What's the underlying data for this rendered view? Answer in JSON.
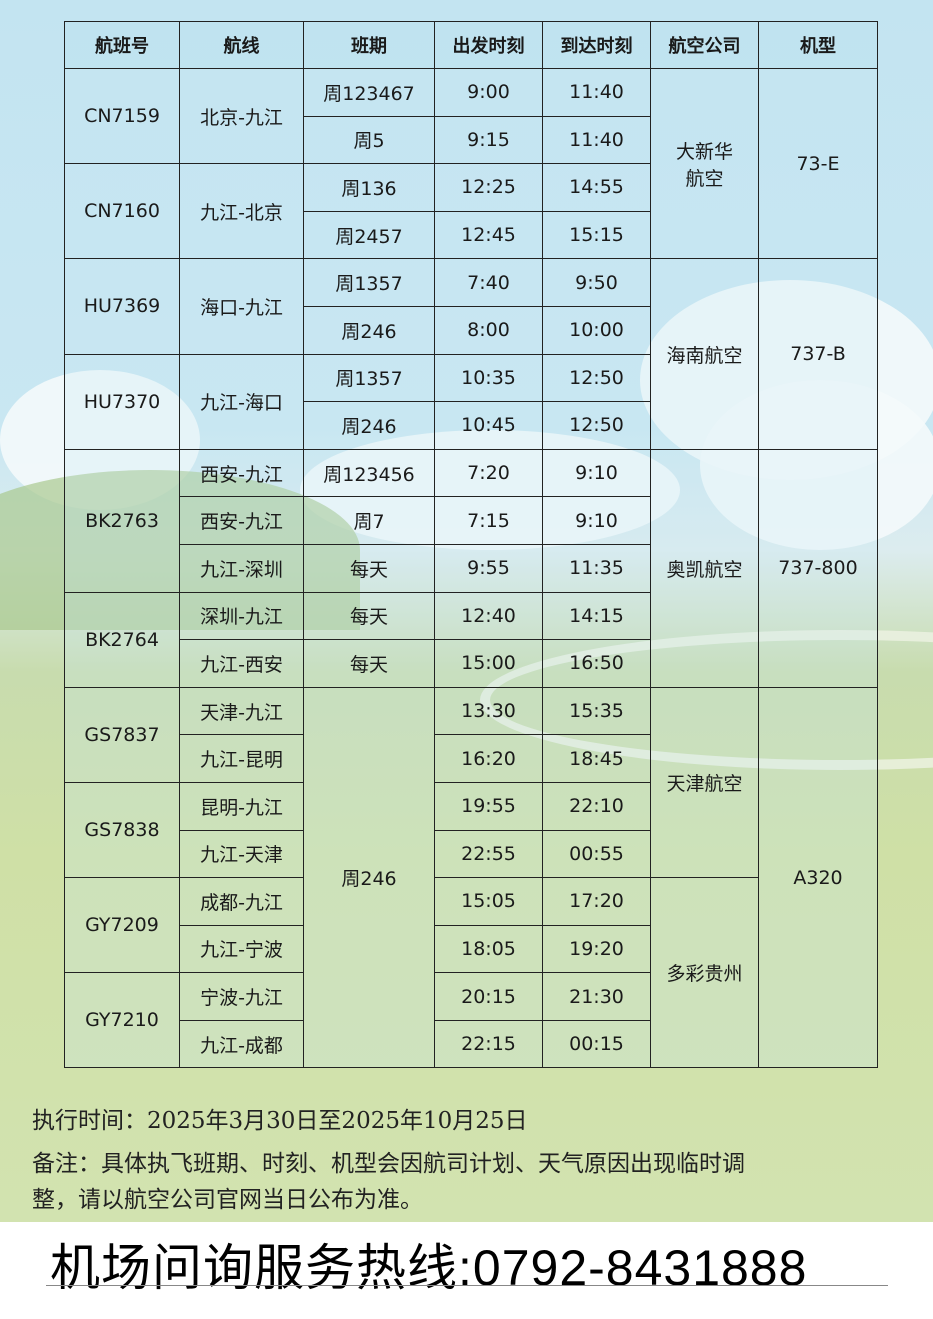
{
  "header": [
    "航班号",
    "航线",
    "班期",
    "出发时刻",
    "到达时刻",
    "航空公司",
    "机型"
  ],
  "rows": [
    [
      {
        "t": "CN7159",
        "r": 2
      },
      {
        "t": "北京-九江",
        "r": 2
      },
      {
        "t": "周123467"
      },
      {
        "t": "9:00"
      },
      {
        "t": "11:40"
      },
      {
        "t": "大新华\n航空",
        "r": 4
      },
      {
        "t": "73-E",
        "r": 4
      }
    ],
    [
      {
        "t": "周5"
      },
      {
        "t": "9:15"
      },
      {
        "t": "11:40"
      }
    ],
    [
      {
        "t": "CN7160",
        "r": 2
      },
      {
        "t": "九江-北京",
        "r": 2
      },
      {
        "t": "周136"
      },
      {
        "t": "12:25"
      },
      {
        "t": "14:55"
      }
    ],
    [
      {
        "t": "周2457"
      },
      {
        "t": "12:45"
      },
      {
        "t": "15:15"
      }
    ],
    [
      {
        "t": "HU7369",
        "r": 2
      },
      {
        "t": "海口-九江",
        "r": 2
      },
      {
        "t": "周1357"
      },
      {
        "t": "7:40"
      },
      {
        "t": "9:50"
      },
      {
        "t": "海南航空",
        "r": 4
      },
      {
        "t": "737-B",
        "r": 4
      }
    ],
    [
      {
        "t": "周246"
      },
      {
        "t": "8:00"
      },
      {
        "t": "10:00"
      }
    ],
    [
      {
        "t": "HU7370",
        "r": 2
      },
      {
        "t": "九江-海口",
        "r": 2
      },
      {
        "t": "周1357"
      },
      {
        "t": "10:35"
      },
      {
        "t": "12:50"
      }
    ],
    [
      {
        "t": "周246"
      },
      {
        "t": "10:45"
      },
      {
        "t": "12:50"
      }
    ],
    [
      {
        "t": "BK2763",
        "r": 3
      },
      {
        "t": "西安-九江"
      },
      {
        "t": "周123456"
      },
      {
        "t": "7:20"
      },
      {
        "t": "9:10"
      },
      {
        "t": "奥凯航空",
        "r": 5
      },
      {
        "t": "737-800",
        "r": 5
      }
    ],
    [
      {
        "t": "西安-九江"
      },
      {
        "t": "周7"
      },
      {
        "t": "7:15"
      },
      {
        "t": "9:10"
      }
    ],
    [
      {
        "t": "九江-深圳"
      },
      {
        "t": "每天"
      },
      {
        "t": "9:55"
      },
      {
        "t": "11:35"
      }
    ],
    [
      {
        "t": "BK2764",
        "r": 2
      },
      {
        "t": "深圳-九江"
      },
      {
        "t": "每天"
      },
      {
        "t": "12:40"
      },
      {
        "t": "14:15"
      }
    ],
    [
      {
        "t": "九江-西安"
      },
      {
        "t": "每天"
      },
      {
        "t": "15:00"
      },
      {
        "t": "16:50"
      }
    ],
    [
      {
        "t": "GS7837",
        "r": 2
      },
      {
        "t": "天津-九江"
      },
      {
        "t": "周246",
        "r": 8
      },
      {
        "t": "13:30"
      },
      {
        "t": "15:35"
      },
      {
        "t": "天津航空",
        "r": 4
      },
      {
        "t": "A320",
        "r": 8
      }
    ],
    [
      {
        "t": "九江-昆明"
      },
      {
        "t": "16:20"
      },
      {
        "t": "18:45"
      }
    ],
    [
      {
        "t": "GS7838",
        "r": 2
      },
      {
        "t": "昆明-九江"
      },
      {
        "t": "19:55"
      },
      {
        "t": "22:10"
      }
    ],
    [
      {
        "t": "九江-天津"
      },
      {
        "t": "22:55"
      },
      {
        "t": "00:55"
      }
    ],
    [
      {
        "t": "GY7209",
        "r": 2
      },
      {
        "t": "成都-九江"
      },
      {
        "t": "15:05"
      },
      {
        "t": "17:20"
      },
      {
        "t": "多彩贵州",
        "r": 4
      }
    ],
    [
      {
        "t": "九江-宁波"
      },
      {
        "t": "18:05"
      },
      {
        "t": "19:20"
      }
    ],
    [
      {
        "t": "GY7210",
        "r": 2
      },
      {
        "t": "宁波-九江"
      },
      {
        "t": "20:15"
      },
      {
        "t": "21:30"
      }
    ],
    [
      {
        "t": "九江-成都"
      },
      {
        "t": "22:15"
      },
      {
        "t": "00:15"
      }
    ]
  ],
  "notes": {
    "period": "执行时间：2025年3月30日至2025年10月25日",
    "remark_line1": "备注：具体执飞班期、时刻、机型会因航司计划、天气原因出现临时调",
    "remark_line2": "整，请以航空公司官网当日公布为准。"
  },
  "hotline": "机场问询服务热线:0792-8431888",
  "colors": {
    "sky": "#c3e4f1",
    "grass": "#cfe0a6",
    "grid": "#222222"
  }
}
